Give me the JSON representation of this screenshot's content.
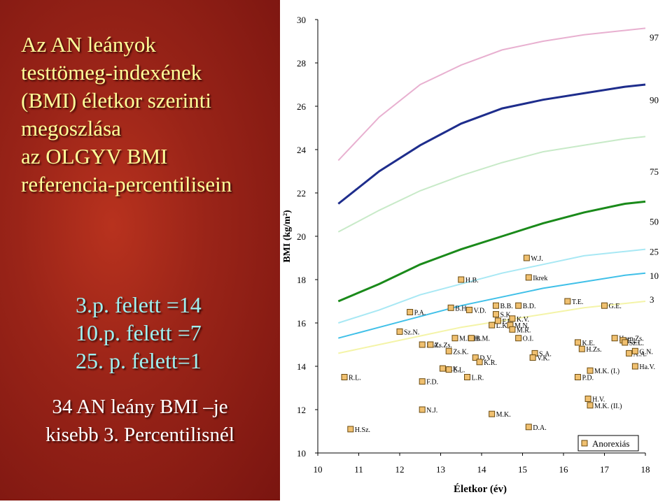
{
  "slide": {
    "title_lines": [
      "Az AN leányok",
      "testtömeg-indexének",
      "(BMI) életkor szerinti",
      "megoszlása",
      "az OLGYV BMI",
      "referencia-percentilisein"
    ],
    "stats_lines": [
      "3.p. felett =14",
      "10.p. felett =7",
      "25. p. felett=1"
    ],
    "note_lines": [
      "34 AN leány BMI –je",
      "kisebb 3. Percentilisnél"
    ],
    "colors": {
      "background": "#9a2418",
      "title": "#ffff9a",
      "stats": "#9ff0f0",
      "note": "#ffffff"
    }
  },
  "chart_data": {
    "type": "scatter",
    "xlabel": "Életkor (év)",
    "ylabel": "BMI (kg/m²)",
    "xlim": [
      10,
      18
    ],
    "ylim": [
      10,
      30
    ],
    "x_ticks": [
      10,
      11,
      12,
      13,
      14,
      15,
      16,
      17,
      18
    ],
    "y_ticks": [
      10,
      12,
      14,
      16,
      18,
      20,
      22,
      24,
      26,
      28,
      30
    ],
    "grid": false,
    "legend": "Anorexiás",
    "percentile_labels": [
      {
        "label": "97",
        "y": 29.2
      },
      {
        "label": "90",
        "y": 26.3
      },
      {
        "label": "75",
        "y": 23.0
      },
      {
        "label": "50",
        "y": 20.7
      },
      {
        "label": "25",
        "y": 19.3
      },
      {
        "label": "10",
        "y": 18.2
      },
      {
        "label": "3",
        "y": 17.1
      }
    ],
    "curves": [
      {
        "name": "97",
        "color": "#e8b0d0",
        "points": [
          [
            10.5,
            23.5
          ],
          [
            11.5,
            25.5
          ],
          [
            12.5,
            27
          ],
          [
            13.5,
            27.9
          ],
          [
            14.5,
            28.6
          ],
          [
            15.5,
            29.0
          ],
          [
            16.5,
            29.3
          ],
          [
            17.5,
            29.5
          ],
          [
            18,
            29.6
          ]
        ]
      },
      {
        "name": "90",
        "color": "#1e2d8c",
        "points": [
          [
            10.5,
            21.5
          ],
          [
            11.5,
            23.0
          ],
          [
            12.5,
            24.2
          ],
          [
            13.5,
            25.2
          ],
          [
            14.5,
            25.9
          ],
          [
            15.5,
            26.3
          ],
          [
            16.5,
            26.6
          ],
          [
            17.5,
            26.9
          ],
          [
            18,
            27.0
          ]
        ]
      },
      {
        "name": "75",
        "color": "#c8eac8",
        "points": [
          [
            10.5,
            20.2
          ],
          [
            11.5,
            21.2
          ],
          [
            12.5,
            22.1
          ],
          [
            13.5,
            22.8
          ],
          [
            14.5,
            23.4
          ],
          [
            15.5,
            23.9
          ],
          [
            16.5,
            24.2
          ],
          [
            17.5,
            24.5
          ],
          [
            18,
            24.6
          ]
        ]
      },
      {
        "name": "50",
        "color": "#1a8a1a",
        "points": [
          [
            10.5,
            17.0
          ],
          [
            11.5,
            17.8
          ],
          [
            12.5,
            18.7
          ],
          [
            13.5,
            19.4
          ],
          [
            14.5,
            20.0
          ],
          [
            15.5,
            20.6
          ],
          [
            16.5,
            21.1
          ],
          [
            17.5,
            21.5
          ],
          [
            18,
            21.6
          ]
        ]
      },
      {
        "name": "25",
        "color": "#a8e8f4",
        "points": [
          [
            10.5,
            16.0
          ],
          [
            11.5,
            16.6
          ],
          [
            12.5,
            17.3
          ],
          [
            13.5,
            17.8
          ],
          [
            14.5,
            18.3
          ],
          [
            15.5,
            18.7
          ],
          [
            16.5,
            19.1
          ],
          [
            17.5,
            19.3
          ],
          [
            18,
            19.4
          ]
        ]
      },
      {
        "name": "10",
        "color": "#40c0e8",
        "points": [
          [
            10.5,
            15.3
          ],
          [
            11.5,
            15.8
          ],
          [
            12.5,
            16.3
          ],
          [
            13.5,
            16.8
          ],
          [
            14.5,
            17.2
          ],
          [
            15.5,
            17.6
          ],
          [
            16.5,
            17.9
          ],
          [
            17.5,
            18.2
          ],
          [
            18,
            18.3
          ]
        ]
      },
      {
        "name": "3",
        "color": "#f4f4a8",
        "points": [
          [
            10.5,
            14.6
          ],
          [
            11.5,
            15.0
          ],
          [
            12.5,
            15.4
          ],
          [
            13.5,
            15.8
          ],
          [
            14.5,
            16.1
          ],
          [
            15.5,
            16.4
          ],
          [
            16.5,
            16.7
          ],
          [
            17.5,
            16.9
          ],
          [
            18,
            17.0
          ]
        ]
      }
    ],
    "points": [
      {
        "label": "R.L.",
        "x": 10.65,
        "y": 13.5
      },
      {
        "label": "H.Sz.",
        "x": 10.8,
        "y": 11.1
      },
      {
        "label": "Sz.N.",
        "x": 12.0,
        "y": 15.6
      },
      {
        "label": "P.A.",
        "x": 12.25,
        "y": 16.5
      },
      {
        "label": "K.A.",
        "x": 12.55,
        "y": 15.0
      },
      {
        "label": "F.D.",
        "x": 12.55,
        "y": 13.3
      },
      {
        "label": "N.J.",
        "x": 12.55,
        "y": 12.0
      },
      {
        "label": "Zs.Zs.",
        "x": 12.75,
        "y": 15.0
      },
      {
        "label": "Zs.K.",
        "x": 13.2,
        "y": 14.7
      },
      {
        "label": "B.H.",
        "x": 13.25,
        "y": 16.7
      },
      {
        "label": "L.K.",
        "x": 13.05,
        "y": 13.9
      },
      {
        "label": "E.L.",
        "x": 13.2,
        "y": 13.85
      },
      {
        "label": "M.N.H.",
        "x": 13.35,
        "y": 15.3
      },
      {
        "label": "H.B.",
        "x": 13.5,
        "y": 18.0
      },
      {
        "label": "L.R.",
        "x": 13.65,
        "y": 13.5
      },
      {
        "label": "B.M.",
        "x": 13.75,
        "y": 15.3
      },
      {
        "label": "V.D.",
        "x": 13.7,
        "y": 16.6
      },
      {
        "label": "D.V.",
        "x": 13.85,
        "y": 14.4
      },
      {
        "label": "K.R.",
        "x": 13.95,
        "y": 14.2
      },
      {
        "label": "L.K.",
        "x": 14.25,
        "y": 15.9
      },
      {
        "label": "B.B.",
        "x": 14.35,
        "y": 16.8
      },
      {
        "label": "S.K.",
        "x": 14.35,
        "y": 16.4
      },
      {
        "label": "F.L.",
        "x": 14.4,
        "y": 16.1
      },
      {
        "label": "M.K.",
        "x": 14.25,
        "y": 11.8
      },
      {
        "label": "M.N.",
        "x": 14.7,
        "y": 15.9
      },
      {
        "label": "M.R.",
        "x": 14.75,
        "y": 15.7
      },
      {
        "label": "K.V.",
        "x": 14.75,
        "y": 16.2
      },
      {
        "label": "B.D.",
        "x": 14.9,
        "y": 16.8
      },
      {
        "label": "O.I.",
        "x": 14.9,
        "y": 15.3
      },
      {
        "label": "W.J.",
        "x": 15.1,
        "y": 19.0
      },
      {
        "label": "Ikrek",
        "x": 15.15,
        "y": 18.1
      },
      {
        "label": "D.A.",
        "x": 15.15,
        "y": 11.2
      },
      {
        "label": "S.A.",
        "x": 15.3,
        "y": 14.6
      },
      {
        "label": "V.K.",
        "x": 15.25,
        "y": 14.4
      },
      {
        "label": "T.E.",
        "x": 16.1,
        "y": 17.0
      },
      {
        "label": "K.E.",
        "x": 16.35,
        "y": 15.1
      },
      {
        "label": "H.Zs.",
        "x": 16.45,
        "y": 14.8
      },
      {
        "label": "P.D.",
        "x": 16.35,
        "y": 13.5
      },
      {
        "label": "M.K. (I.)",
        "x": 16.65,
        "y": 13.8
      },
      {
        "label": "H.V.",
        "x": 16.6,
        "y": 12.5
      },
      {
        "label": "M.K. (II.)",
        "x": 16.65,
        "y": 12.2
      },
      {
        "label": "G.E.",
        "x": 17.0,
        "y": 16.8
      },
      {
        "label": "Horn.Zs.",
        "x": 17.25,
        "y": 15.3
      },
      {
        "label": "E.L.",
        "x": 17.45,
        "y": 15.2
      },
      {
        "label": "Sz.L.",
        "x": 17.5,
        "y": 15.1
      },
      {
        "label": "A.A.",
        "x": 17.6,
        "y": 14.6
      },
      {
        "label": "G.N.",
        "x": 17.75,
        "y": 14.7
      },
      {
        "label": "Ha.V.",
        "x": 17.75,
        "y": 14.0
      }
    ]
  }
}
